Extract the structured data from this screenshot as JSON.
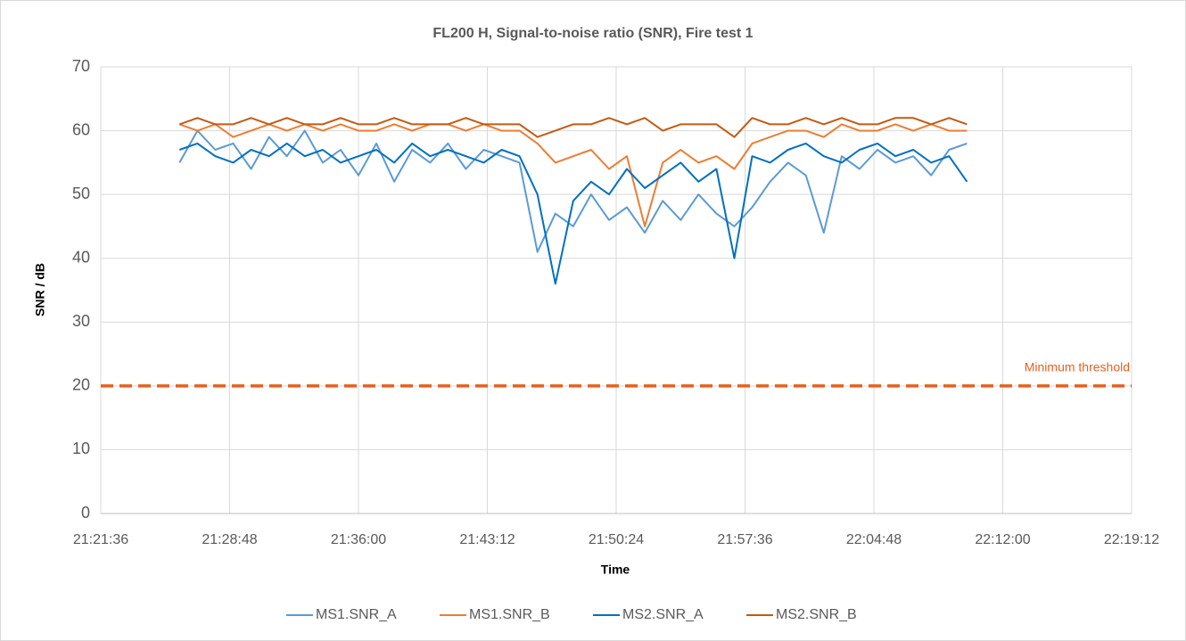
{
  "chart_data": {
    "type": "line",
    "title": "FL200 H, Signal-to-noise ratio (SNR), Fire test 1",
    "x_label": "Time",
    "y_label": "SNR / dB",
    "x": [
      "21:26:00",
      "21:27:00",
      "21:28:00",
      "21:29:00",
      "21:30:00",
      "21:31:00",
      "21:32:00",
      "21:33:00",
      "21:34:00",
      "21:35:00",
      "21:36:00",
      "21:37:00",
      "21:38:00",
      "21:39:00",
      "21:40:00",
      "21:41:00",
      "21:42:00",
      "21:43:00",
      "21:44:00",
      "21:45:00",
      "21:46:00",
      "21:47:00",
      "21:48:00",
      "21:49:00",
      "21:50:00",
      "21:51:00",
      "21:52:00",
      "21:53:00",
      "21:54:00",
      "21:55:00",
      "21:56:00",
      "21:57:00",
      "21:58:00",
      "21:59:00",
      "22:00:00",
      "22:01:00",
      "22:02:00",
      "22:03:00",
      "22:04:00",
      "22:05:00",
      "22:06:00",
      "22:07:00",
      "22:08:00",
      "22:09:00",
      "22:10:00"
    ],
    "series": [
      {
        "name": "MS1.SNR_A",
        "color": "#5b9bd5",
        "values": [
          55,
          60,
          57,
          58,
          54,
          59,
          56,
          60,
          55,
          57,
          53,
          58,
          52,
          57,
          55,
          58,
          54,
          57,
          56,
          55,
          41,
          47,
          45,
          50,
          46,
          48,
          44,
          49,
          46,
          50,
          47,
          45,
          48,
          52,
          55,
          53,
          44,
          56,
          54,
          57,
          55,
          56,
          53,
          57,
          58
        ]
      },
      {
        "name": "MS1.SNR_B",
        "color": "#ed7d31",
        "values": [
          61,
          60,
          61,
          59,
          60,
          61,
          60,
          61,
          60,
          61,
          60,
          60,
          61,
          60,
          61,
          61,
          60,
          61,
          60,
          60,
          58,
          55,
          56,
          57,
          54,
          56,
          45,
          55,
          57,
          55,
          56,
          54,
          58,
          59,
          60,
          60,
          59,
          61,
          60,
          60,
          61,
          60,
          61,
          60,
          60
        ]
      },
      {
        "name": "MS2.SNR_A",
        "color": "#0070c0",
        "values": [
          57,
          58,
          56,
          55,
          57,
          56,
          58,
          56,
          57,
          55,
          56,
          57,
          55,
          58,
          56,
          57,
          56,
          55,
          57,
          56,
          50,
          36,
          49,
          52,
          50,
          54,
          51,
          53,
          55,
          52,
          54,
          40,
          56,
          55,
          57,
          58,
          56,
          55,
          57,
          58,
          56,
          57,
          55,
          56,
          52
        ]
      },
      {
        "name": "MS2.SNR_B",
        "color": "#c55a11",
        "values": [
          61,
          62,
          61,
          61,
          62,
          61,
          62,
          61,
          61,
          62,
          61,
          61,
          62,
          61,
          61,
          61,
          62,
          61,
          61,
          61,
          59,
          60,
          61,
          61,
          62,
          61,
          62,
          60,
          61,
          61,
          61,
          59,
          62,
          61,
          61,
          62,
          61,
          62,
          61,
          61,
          62,
          62,
          61,
          62,
          61
        ]
      }
    ],
    "threshold": {
      "value": 20,
      "label": "Minimum threshold",
      "color": "#e8601c"
    },
    "xlim": [
      "21:21:36",
      "22:19:12"
    ],
    "xticks": [
      "21:21:36",
      "21:28:48",
      "21:36:00",
      "21:43:12",
      "21:50:24",
      "21:57:36",
      "22:04:48",
      "22:12:00",
      "22:19:12"
    ],
    "ylim": [
      0,
      70
    ],
    "yticks": [
      0,
      10,
      20,
      30,
      40,
      50,
      60,
      70
    ],
    "grid": true,
    "legend": "bottom"
  }
}
